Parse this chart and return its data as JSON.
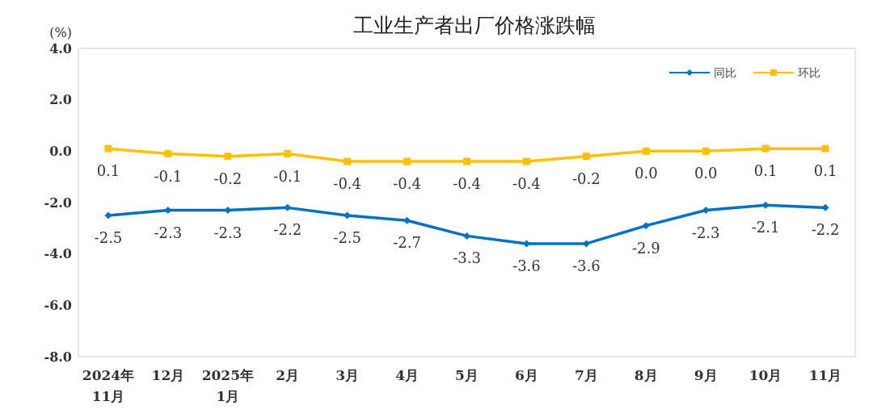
{
  "chart_data": {
    "type": "line",
    "title": "工业生产者出厂价格涨跌幅",
    "ylabel": "(%)",
    "categories": [
      "2024年\n11月",
      "12月",
      "2025年\n1月",
      "2月",
      "3月",
      "4月",
      "5月",
      "6月",
      "7月",
      "8月",
      "9月",
      "10月",
      "11月"
    ],
    "series": [
      {
        "name": "同比",
        "color": "#0070c0",
        "marker": "diamond",
        "values": [
          -2.5,
          -2.3,
          -2.3,
          -2.2,
          -2.5,
          -2.7,
          -3.3,
          -3.6,
          -3.6,
          -2.9,
          -2.3,
          -2.1,
          -2.2
        ],
        "value_labels": [
          "-2.5",
          "-2.3",
          "-2.3",
          "-2.2",
          "-2.5",
          "-2.7",
          "-3.3",
          "-3.6",
          "-3.6",
          "-2.9",
          "-2.3",
          "-2.1",
          "-2.2"
        ]
      },
      {
        "name": "环比",
        "color": "#ffc000",
        "marker": "square",
        "values": [
          0.1,
          -0.1,
          -0.2,
          -0.1,
          -0.4,
          -0.4,
          -0.4,
          -0.4,
          -0.2,
          0.0,
          0.0,
          0.1,
          0.1
        ],
        "value_labels": [
          "0.1",
          "-0.1",
          "-0.2",
          "-0.1",
          "-0.4",
          "-0.4",
          "-0.4",
          "-0.4",
          "-0.2",
          "0.0",
          "0.0",
          "0.1",
          "0.1"
        ]
      }
    ],
    "ylim": [
      -8,
      4
    ],
    "yticks": [
      {
        "value": -8,
        "label": "-8.0"
      },
      {
        "value": -6,
        "label": "-6.0"
      },
      {
        "value": -4,
        "label": "-4.0"
      },
      {
        "value": -2,
        "label": "-2.0"
      },
      {
        "value": 0,
        "label": "0.0"
      },
      {
        "value": 2,
        "label": "2.0"
      },
      {
        "value": 4,
        "label": "4.0"
      }
    ],
    "legend": "top right",
    "line_style": "solid"
  }
}
